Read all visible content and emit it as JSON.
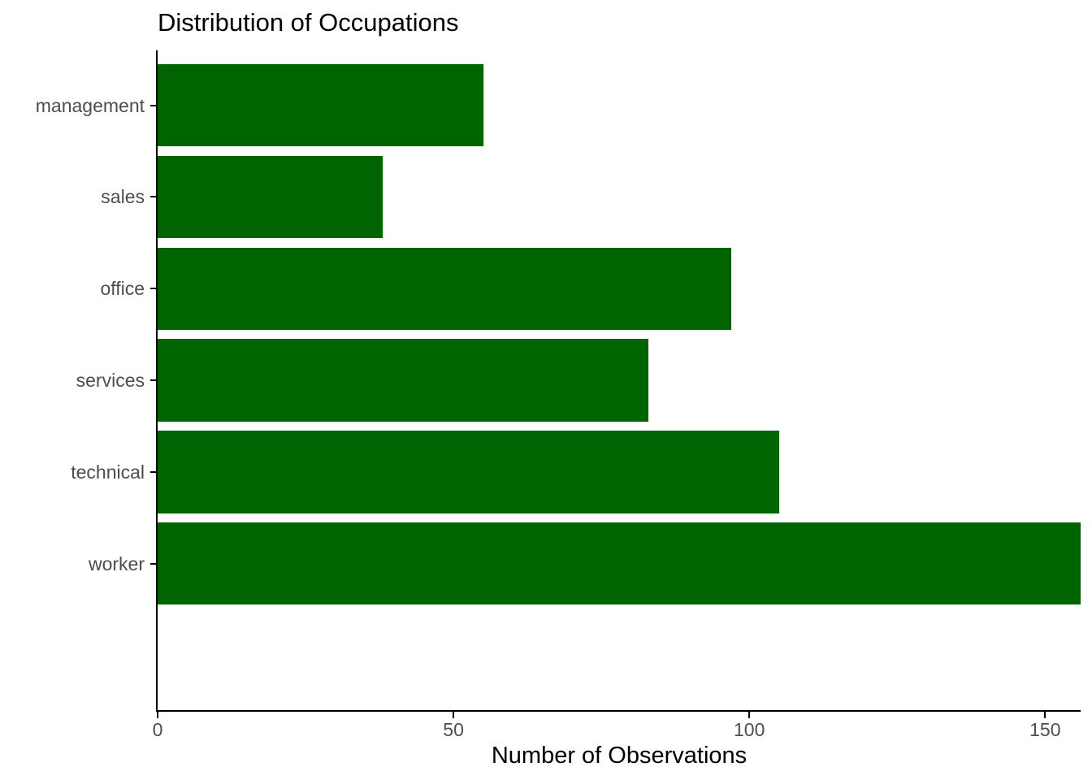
{
  "chart_data": {
    "type": "bar",
    "orientation": "horizontal",
    "title": "Distribution of Occupations",
    "xlabel": "Number of Observations",
    "ylabel": "",
    "categories": [
      "management",
      "sales",
      "office",
      "services",
      "technical",
      "worker"
    ],
    "values": [
      55,
      38,
      97,
      83,
      105,
      156
    ],
    "x_ticks": [
      "0",
      "50",
      "100",
      "150"
    ],
    "x_tick_values": [
      0,
      50,
      100,
      150
    ],
    "xlim": [
      0,
      156
    ],
    "grid": false,
    "legend": "none",
    "colors": {
      "bar": "#006400",
      "axis": "#000000",
      "tick_label": "#4d4d4d",
      "title": "#000000"
    }
  }
}
